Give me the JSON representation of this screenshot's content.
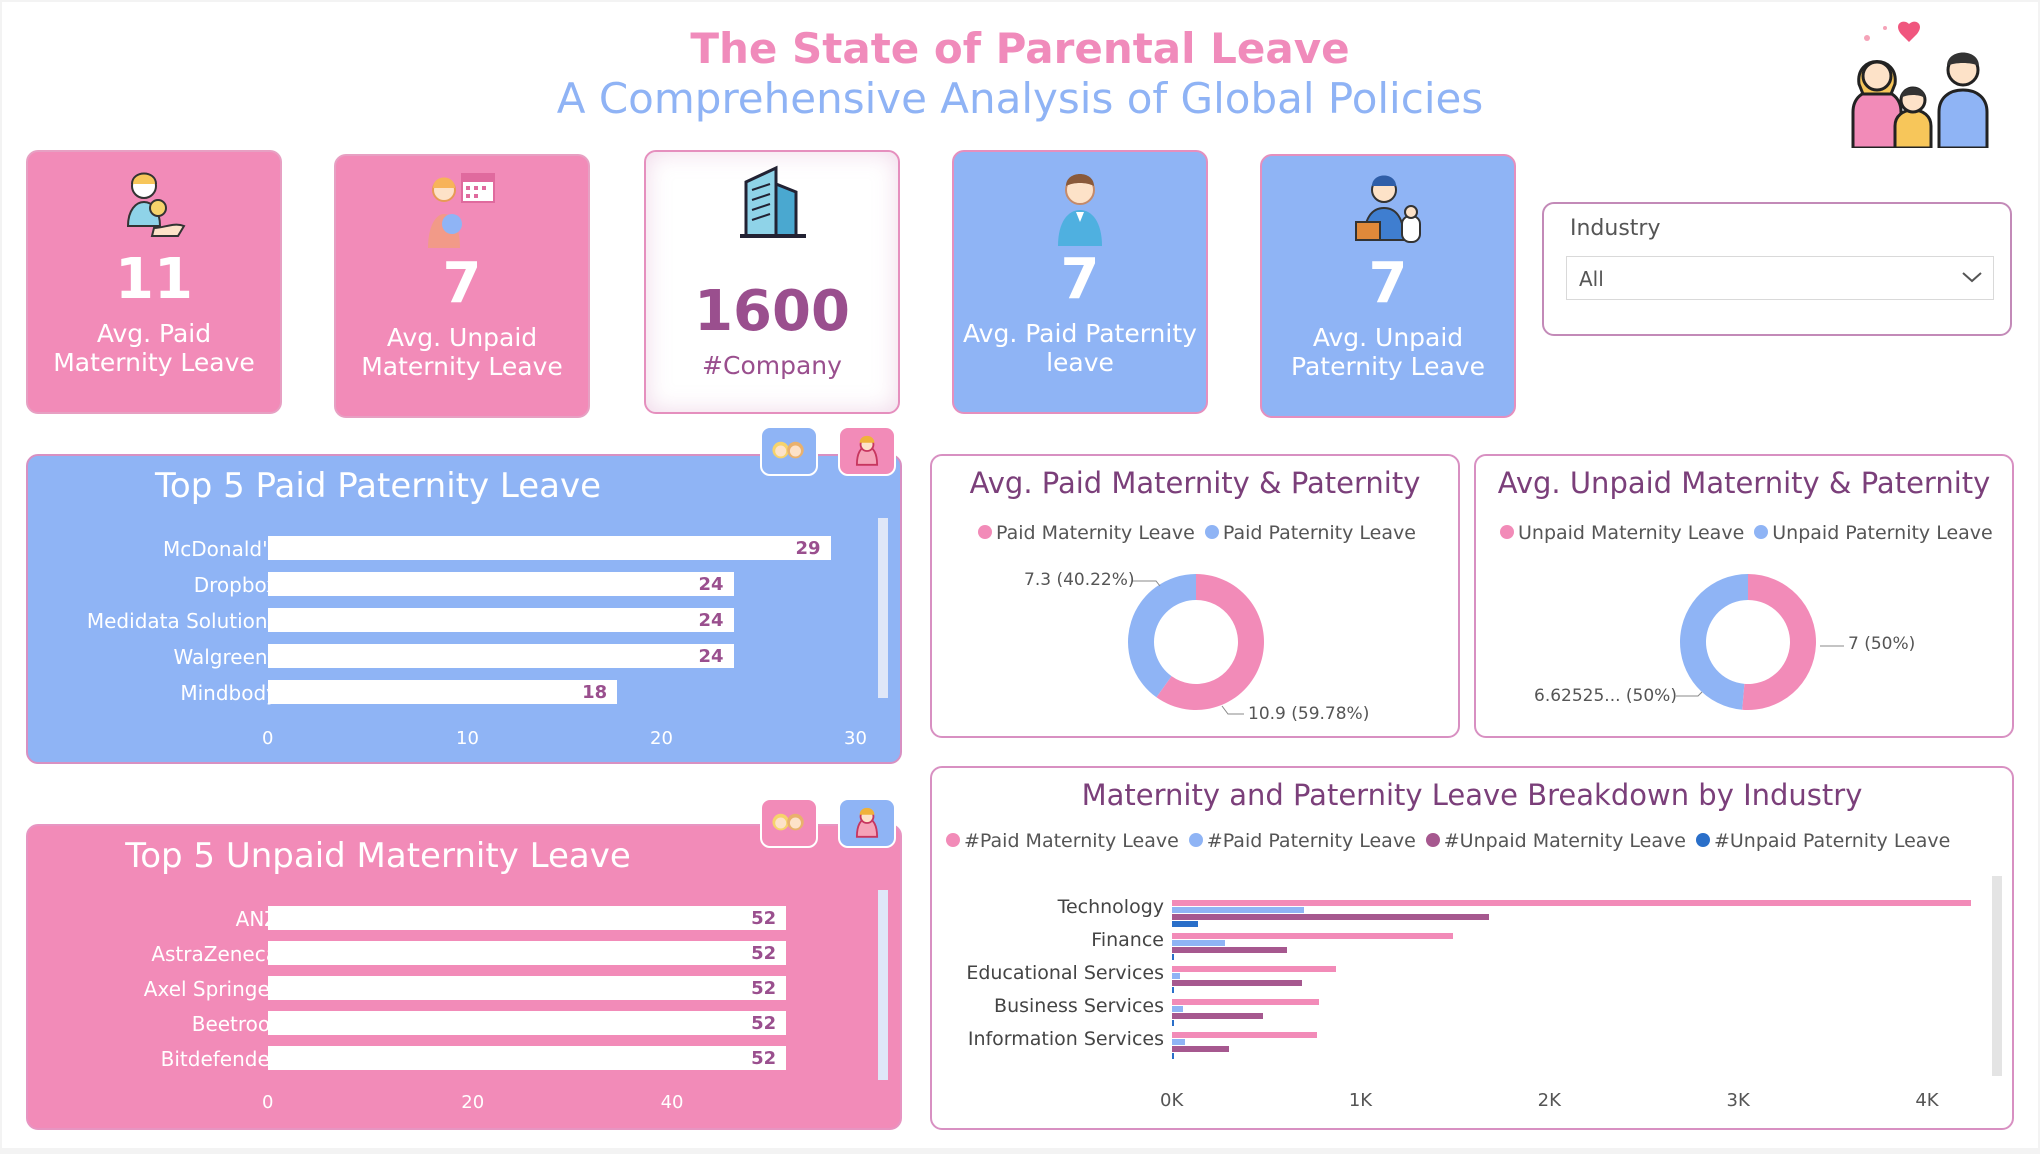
{
  "header": {
    "title": "The State of Parental Leave",
    "subtitle": "A Comprehensive Analysis of Global Policies"
  },
  "colors": {
    "pink": "#f28bb8",
    "blue": "#8fb4f5",
    "purple": "#9a4f8e",
    "dark_blue": "#2a6fc9",
    "mauve": "#a6588f"
  },
  "icons": {
    "header": "family-icon",
    "kpi": [
      "mother-baby-money-icon",
      "mother-baby-calendar-icon",
      "office-building-icon",
      "father-icon",
      "father-briefcase-icon"
    ],
    "toggles": [
      "couple-icon",
      "woman-icon"
    ]
  },
  "kpis": [
    {
      "value": "11",
      "label_line1": "Avg. Paid",
      "label_line2": "Maternity Leave"
    },
    {
      "value": "7",
      "label_line1": "Avg. Unpaid",
      "label_line2": "Maternity Leave"
    },
    {
      "value": "1600",
      "label_line1": "#Company",
      "label_line2": ""
    },
    {
      "value": "7",
      "label_line1": "Avg. Paid Paternity",
      "label_line2": "leave"
    },
    {
      "value": "7",
      "label_line1": "Avg. Unpaid",
      "label_line2": "Paternity Leave"
    }
  ],
  "slicer": {
    "label": "Industry",
    "selected": "All"
  },
  "chart_data": [
    {
      "type": "bar",
      "title": "Top 5 Paid Paternity Leave",
      "categories": [
        "McDonald's",
        "Dropbox",
        "Medidata Solutions",
        "Walgreens",
        "Mindbody"
      ],
      "values": [
        29,
        24,
        24,
        24,
        18
      ],
      "xlim": [
        0,
        30
      ],
      "xticks": [
        "0",
        "10",
        "20",
        "30"
      ]
    },
    {
      "type": "bar",
      "title": "Top 5 Unpaid Maternity Leave",
      "categories": [
        "ANZ",
        "AstraZeneca",
        "Axel Springer",
        "Beetroot",
        "Bitdefender"
      ],
      "values": [
        52,
        52,
        52,
        52,
        52
      ],
      "xlim": [
        0,
        52
      ],
      "xticks": [
        "0",
        "20",
        "40"
      ]
    },
    {
      "type": "pie",
      "title": "Avg. Paid Maternity & Paternity",
      "series": [
        {
          "name": "Paid Maternity Leave",
          "value": 10.9,
          "label": "10.9 (59.78%)",
          "color": "#f28bb8"
        },
        {
          "name": "Paid Paternity Leave",
          "value": 7.3,
          "label": "7.3 (40.22%)",
          "color": "#8fb4f5"
        }
      ]
    },
    {
      "type": "pie",
      "title": "Avg. Unpaid Maternity & Paternity",
      "series": [
        {
          "name": "Unpaid Maternity Leave",
          "value": 7,
          "label": "7 (50%)",
          "color": "#f28bb8"
        },
        {
          "name": "Unpaid Paternity Leave",
          "value": 6.62525,
          "label": "6.62525... (50%)",
          "color": "#8fb4f5"
        }
      ]
    },
    {
      "type": "bar",
      "title": "Maternity and Paternity Leave Breakdown by Industry",
      "categories": [
        "Technology",
        "Finance",
        "Educational Services",
        "Business Services",
        "Information Services"
      ],
      "series": [
        {
          "name": "#Paid Maternity Leave",
          "color": "#f28bb8",
          "values": [
            4230,
            1490,
            870,
            780,
            770
          ]
        },
        {
          "name": "#Paid Paternity Leave",
          "color": "#8fb4f5",
          "values": [
            700,
            280,
            40,
            60,
            70
          ]
        },
        {
          "name": "#Unpaid Maternity Leave",
          "color": "#a6588f",
          "values": [
            1680,
            610,
            690,
            480,
            300
          ]
        },
        {
          "name": "#Unpaid Paternity Leave",
          "color": "#2a6fc9",
          "values": [
            140,
            10,
            10,
            10,
            10
          ]
        }
      ],
      "xlim": [
        0,
        4300
      ],
      "xticks": [
        "0K",
        "1K",
        "2K",
        "3K",
        "4K"
      ]
    }
  ]
}
